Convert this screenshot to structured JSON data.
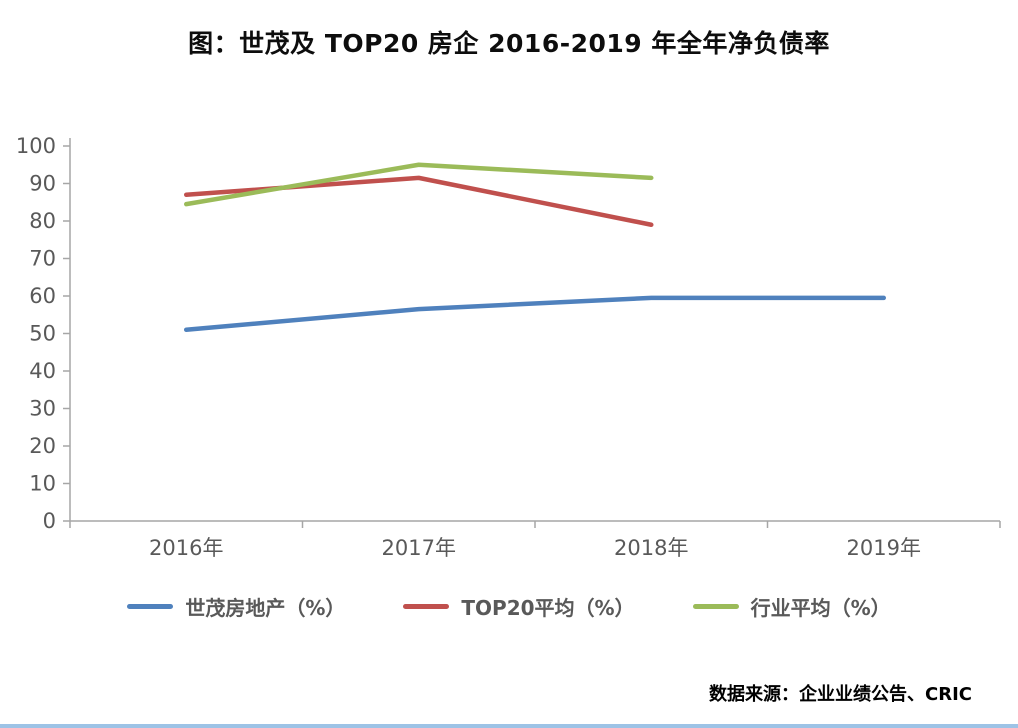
{
  "title": "图：世茂及 TOP20 房企 2016-2019 年全年净负债率",
  "source": "数据来源：企业业绩公告、CRIC",
  "chart_data": {
    "type": "line",
    "categories": [
      "2016年",
      "2017年",
      "2018年",
      "2019年"
    ],
    "series": [
      {
        "name": "世茂房地产（%）",
        "color": "#4F81BD",
        "values": [
          51,
          56.5,
          59.5,
          59.5
        ]
      },
      {
        "name": "TOP20平均（%）",
        "color": "#C0504D",
        "values": [
          87,
          91.5,
          79,
          null
        ]
      },
      {
        "name": "行业平均（%）",
        "color": "#9BBB59",
        "values": [
          84.5,
          95,
          91.5,
          null
        ]
      }
    ],
    "title": "图：世茂及 TOP20 房企 2016-2019 年全年净负债率",
    "xlabel": "",
    "ylabel": "",
    "ylim": [
      0,
      100
    ],
    "ytick_step": 10,
    "grid": false,
    "legend_position": "bottom",
    "axis_color": "#A6A6A6",
    "label_color": "#595959"
  },
  "footer_bar_color": "#9DC3E6"
}
